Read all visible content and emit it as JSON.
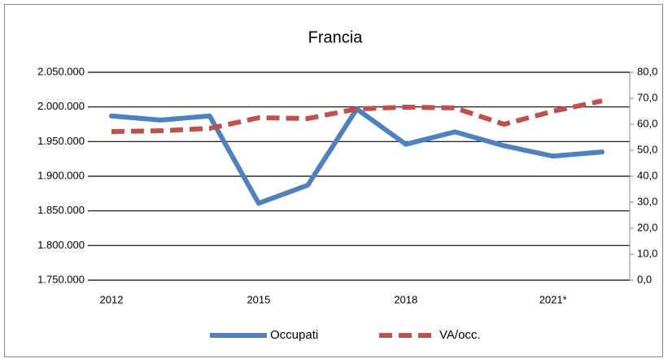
{
  "chart_data": {
    "type": "line",
    "title": "Francia",
    "categories": [
      "2012",
      null,
      null,
      "2015",
      null,
      null,
      "2018",
      null,
      null,
      "2021*",
      null
    ],
    "series": [
      {
        "name": "Occupati",
        "color": "#4f81bd",
        "dash": false,
        "values": [
          1987000,
          1981000,
          1987000,
          1861000,
          1887000,
          1997000,
          1946000,
          1964000,
          1944000,
          1929000,
          1935000
        ]
      },
      {
        "name": "VA/occ.",
        "color": "#c0504d",
        "dash": true,
        "axis": "y2",
        "values": [
          57.2,
          57.5,
          58.4,
          62.5,
          62.2,
          65.9,
          66.6,
          66.3,
          60.0,
          65.0,
          69.0
        ]
      }
    ],
    "ylim": [
      1750000,
      2050000
    ],
    "yticks": [
      {
        "value": 1750000,
        "label": "1.750.000"
      },
      {
        "value": 1800000,
        "label": "1.800.000"
      },
      {
        "value": 1850000,
        "label": "1.850.000"
      },
      {
        "value": 1900000,
        "label": "1.900.000"
      },
      {
        "value": 1950000,
        "label": "1.950.000"
      },
      {
        "value": 2000000,
        "label": "2.000.000"
      },
      {
        "value": 2050000,
        "label": "2.050.000"
      }
    ],
    "y2lim": [
      0,
      80
    ],
    "y2ticks": [
      {
        "value": 0,
        "label": "0,0"
      },
      {
        "value": 10,
        "label": "10,0"
      },
      {
        "value": 20,
        "label": "20,0"
      },
      {
        "value": 30,
        "label": "30,0"
      },
      {
        "value": 40,
        "label": "40,0"
      },
      {
        "value": 50,
        "label": "50,0"
      },
      {
        "value": 60,
        "label": "60,0"
      },
      {
        "value": 70,
        "label": "70,0"
      },
      {
        "value": 80,
        "label": "80,0"
      }
    ],
    "grid": true,
    "legend": "bottom"
  }
}
